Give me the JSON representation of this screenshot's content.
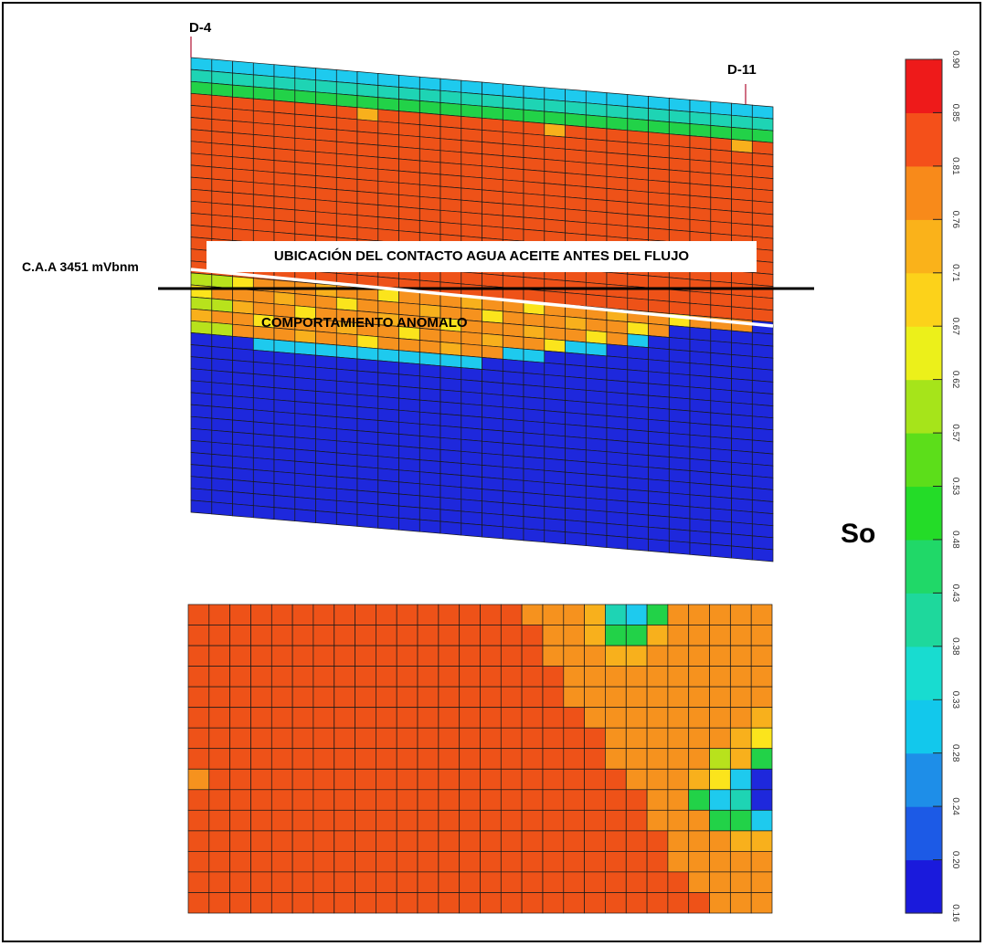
{
  "wells": {
    "left": "D-4",
    "right": "D-11"
  },
  "contact_label": "C.A.A 3451 mVbnm",
  "banner": "UBICACIÓN DEL CONTACTO AGUA ACEITE  ANTES DEL FLUJO",
  "anomaly_label": "COMPORTAMIENTO ANOMALO",
  "property_label": "So",
  "colorbar": {
    "bands_bottom_to_top": [
      "#1a1adc",
      "#1c5ae6",
      "#1e8ee8",
      "#12c8ec",
      "#18dcd0",
      "#1ed89c",
      "#20d868",
      "#24dc28",
      "#5cde1a",
      "#a6e41a",
      "#ecf01a",
      "#fcd21a",
      "#fab21a",
      "#f88a1a",
      "#f4501a",
      "#ee1a1a"
    ],
    "ticks_bottom_to_top": [
      "0.16",
      "0.20",
      "0.24",
      "0.28",
      "0.33",
      "0.38",
      "0.43",
      "0.48",
      "0.53",
      "0.57",
      "0.62",
      "0.67",
      "0.71",
      "0.76",
      "0.81",
      "0.85",
      "0.90"
    ]
  },
  "cell_colors": {
    "deep_blue": "#1e28dc",
    "orange_red": "#ee5218",
    "orange": "#f6921e",
    "amber": "#f8b01c",
    "yellow": "#fbe41c",
    "yellow_green": "#b8e21c",
    "green": "#22d248",
    "teal": "#1ed4b4",
    "cyan": "#1ecaee"
  }
}
